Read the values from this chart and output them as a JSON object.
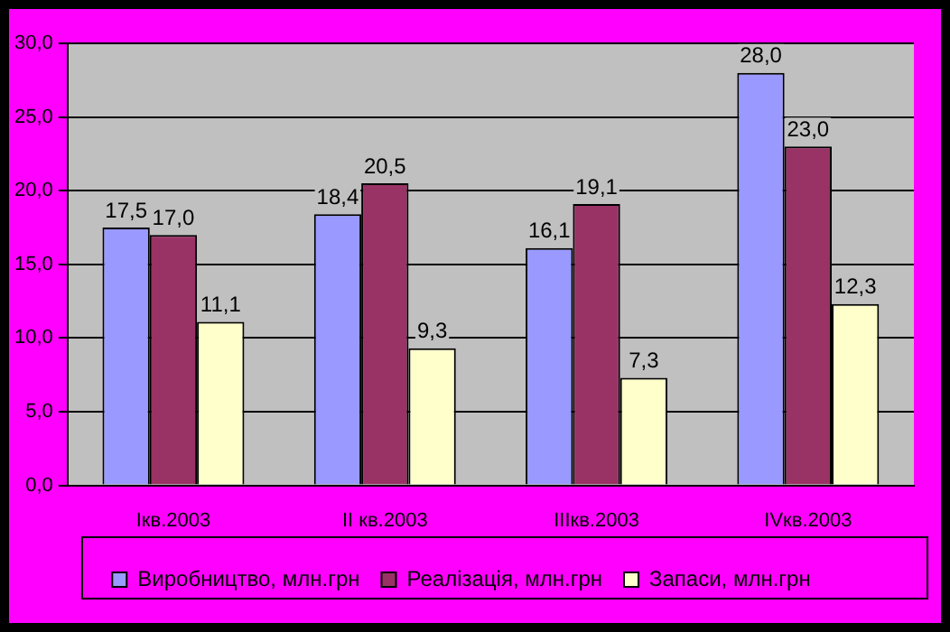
{
  "chart_data": {
    "type": "bar",
    "categories": [
      "Iкв.2003",
      "II кв.2003",
      "IIIкв.2003",
      "IVкв.2003"
    ],
    "series": [
      {
        "name": "Виробництво, млн.грн",
        "color": "#9999ff",
        "values": [
          17.5,
          18.4,
          16.1,
          28.0
        ],
        "value_labels": [
          "17,5",
          "18,4",
          "16,1",
          "28,0"
        ]
      },
      {
        "name": "Реалізація, млн.грн",
        "color": "#993366",
        "values": [
          17.0,
          20.5,
          19.1,
          23.0
        ],
        "value_labels": [
          "17,0",
          "20,5",
          "19,1",
          "23,0"
        ]
      },
      {
        "name": "Запаси, млн.грн",
        "color": "#ffffcc",
        "values": [
          11.1,
          9.3,
          7.3,
          12.3
        ],
        "value_labels": [
          "11,1",
          "9,3",
          "7,3",
          "12,3"
        ]
      }
    ],
    "ylim": [
      0,
      30
    ],
    "yticks": [
      {
        "value": 0,
        "label": "0,0"
      },
      {
        "value": 5,
        "label": "5,0"
      },
      {
        "value": 10,
        "label": "10,0"
      },
      {
        "value": 15,
        "label": "15,0"
      },
      {
        "value": 20,
        "label": "20,0"
      },
      {
        "value": 25,
        "label": "25,0"
      },
      {
        "value": 30,
        "label": "30,0"
      }
    ],
    "grid": "y",
    "legend": "bottom"
  }
}
